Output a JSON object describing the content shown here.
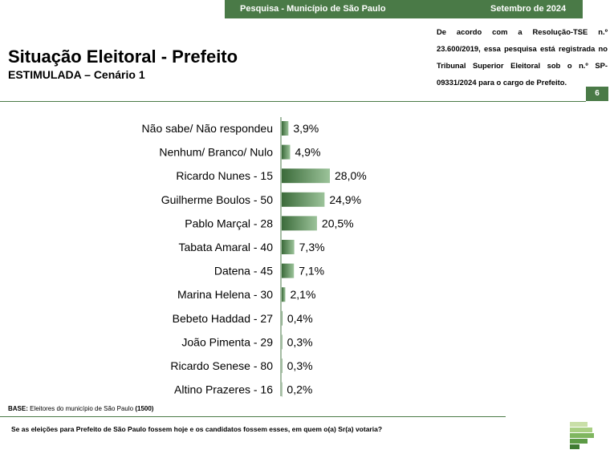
{
  "header": {
    "survey": "Pesquisa - Município de São Paulo",
    "date": "Setembro de 2024"
  },
  "title": "Situação Eleitoral - Prefeito",
  "subtitle": "ESTIMULADA – Cenário 1",
  "registration_note": "De acordo com a Resolução-TSE n.º 23.600/2019, essa pesquisa está registrada no Tribunal Superior Eleitoral sob o n.º SP-09331/2024 para o cargo de Prefeito.",
  "page_number": "6",
  "base": {
    "label": "BASE:",
    "text": "Eleitores do município de São Paulo",
    "count": "(1500)"
  },
  "question": "Se as eleições para Prefeito de São Paulo fossem hoje e os candidatos fossem esses, em quem o(a) Sr(a) votaria?",
  "colors": {
    "brand_green": "#4a7a47",
    "bar_dark": "#3b6b3a",
    "bar_light": "#9cc39a"
  },
  "logo_icon": "institute-logo-icon",
  "chart_data": {
    "type": "bar",
    "orientation": "horizontal",
    "categories": [
      "Não sabe/ Não respondeu",
      "Nenhum/ Branco/ Nulo",
      "Ricardo Nunes - 15",
      "Guilherme Boulos - 50",
      "Pablo Marçal - 28",
      "Tabata Amaral - 40",
      "Datena - 45",
      "Marina Helena - 30",
      "Bebeto Haddad - 27",
      "João Pimenta - 29",
      "Ricardo Senese - 80",
      "Altino Prazeres - 16"
    ],
    "values": [
      3.9,
      4.9,
      28.0,
      24.9,
      20.5,
      7.3,
      7.1,
      2.1,
      0.4,
      0.3,
      0.3,
      0.2
    ],
    "value_labels": [
      "3,9%",
      "4,9%",
      "28,0%",
      "24,9%",
      "20,5%",
      "7,3%",
      "7,1%",
      "2,1%",
      "0,4%",
      "0,3%",
      "0,3%",
      "0,2%"
    ],
    "xlim": [
      0,
      28
    ],
    "grid": false,
    "legend": "none"
  }
}
